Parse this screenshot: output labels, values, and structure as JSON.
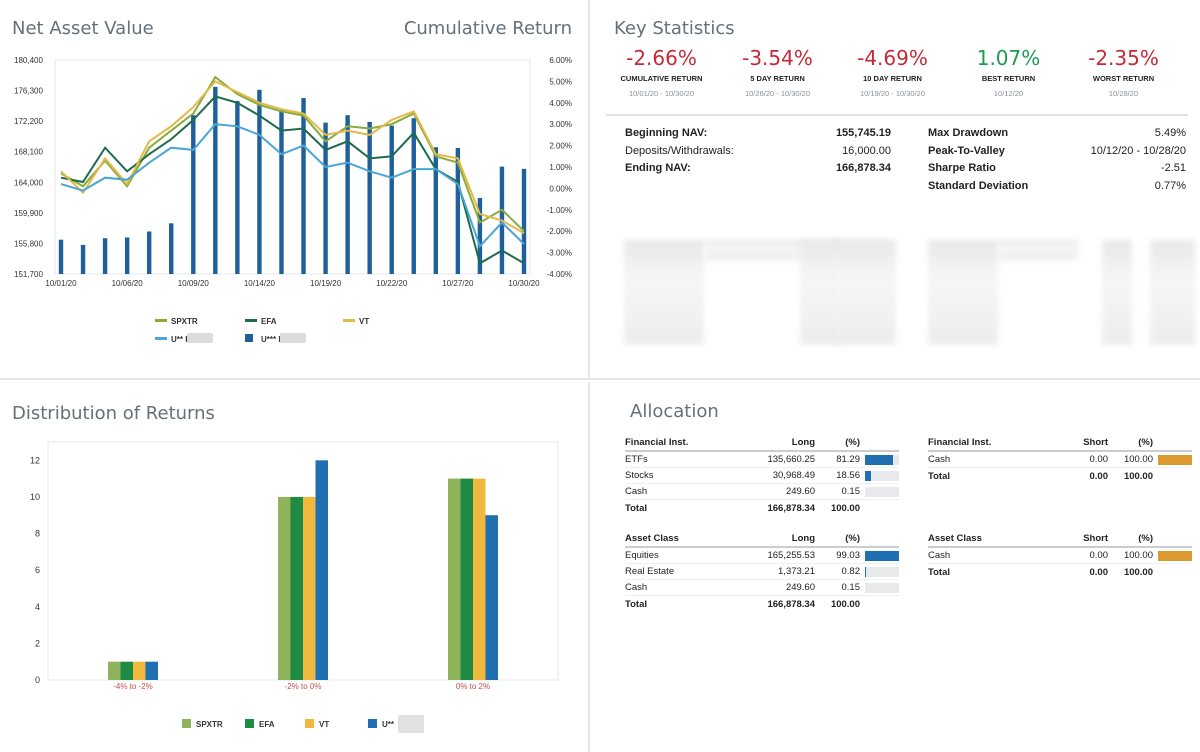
{
  "nav_panel": {
    "title": "Net Asset Value",
    "right_title": "Cumulative Return",
    "legend": [
      {
        "name": "SPXTR",
        "color": "#8aab3b"
      },
      {
        "name": "EFA",
        "color": "#1e6b4c"
      },
      {
        "name": "VT",
        "color": "#e3b94a"
      },
      {
        "name": "U**  Return",
        "color": "#4aa6d6"
      },
      {
        "name": "U***  NAV",
        "color": "#1f5f9c"
      }
    ]
  },
  "stats_panel": {
    "title": "Key Statistics",
    "kpis": [
      {
        "value": "-2.66%",
        "label": "CUMULATIVE RETURN",
        "dates": "10/01/20 - 10/30/20",
        "tone": "neg"
      },
      {
        "value": "-3.54%",
        "label": "5 DAY RETURN",
        "dates": "10/26/20 - 10/30/20",
        "tone": "neg"
      },
      {
        "value": "-4.69%",
        "label": "10 DAY RETURN",
        "dates": "10/19/20 - 10/30/20",
        "tone": "neg"
      },
      {
        "value": "1.07%",
        "label": "BEST RETURN",
        "dates": "10/12/20",
        "tone": "pos"
      },
      {
        "value": "-2.35%",
        "label": "WORST RETURN",
        "dates": "10/28/20",
        "tone": "neg"
      }
    ],
    "left_stats": [
      {
        "label": "Beginning NAV:",
        "value": "155,745.19"
      },
      {
        "label": "Deposits/Withdrawals:",
        "value": "16,000.00"
      },
      {
        "label": "Ending NAV:",
        "value": "166,878.34"
      }
    ],
    "right_stats": [
      {
        "label": "Max Drawdown",
        "value": "5.49%"
      },
      {
        "label": "Peak-To-Valley",
        "value": "10/12/20 - 10/28/20"
      },
      {
        "label": "Sharpe Ratio",
        "value": "-2.51"
      },
      {
        "label": "Standard Deviation",
        "value": "0.77%"
      }
    ]
  },
  "dist_panel": {
    "title": "Distribution of Returns",
    "legend": [
      {
        "name": "SPXTR",
        "color": "#8fb35a"
      },
      {
        "name": "EFA",
        "color": "#1f8a43"
      },
      {
        "name": "VT",
        "color": "#f0b83c"
      },
      {
        "name": "U**",
        "color": "#1f6fb2"
      }
    ]
  },
  "alloc_panel": {
    "title": "Allocation",
    "fin_long": {
      "headers": [
        "Financial Inst.",
        "Long",
        "(%)"
      ],
      "rows": [
        {
          "name": "ETFs",
          "value": "135,660.25",
          "pct": "81.29",
          "frac": 0.8129
        },
        {
          "name": "Stocks",
          "value": "30,968.49",
          "pct": "18.56",
          "frac": 0.1856
        },
        {
          "name": "Cash",
          "value": "249.60",
          "pct": "0.15",
          "frac": 0.0015
        }
      ],
      "total": {
        "name": "Total",
        "value": "166,878.34",
        "pct": "100.00"
      }
    },
    "fin_short": {
      "headers": [
        "Financial Inst.",
        "Short",
        "(%)"
      ],
      "rows": [
        {
          "name": "Cash",
          "value": "0.00",
          "pct": "100.00",
          "frac": 1.0
        }
      ],
      "total": {
        "name": "Total",
        "value": "0.00",
        "pct": "100.00"
      }
    },
    "asset_long": {
      "headers": [
        "Asset Class",
        "Long",
        "(%)"
      ],
      "rows": [
        {
          "name": "Equities",
          "value": "165,255.53",
          "pct": "99.03",
          "frac": 0.9903
        },
        {
          "name": "Real Estate",
          "value": "1,373.21",
          "pct": "0.82",
          "frac": 0.0082
        },
        {
          "name": "Cash",
          "value": "249.60",
          "pct": "0.15",
          "frac": 0.0015
        }
      ],
      "total": {
        "name": "Total",
        "value": "166,878.34",
        "pct": "100.00"
      }
    },
    "asset_short": {
      "headers": [
        "Asset Class",
        "Short",
        "(%)"
      ],
      "rows": [
        {
          "name": "Cash",
          "value": "0.00",
          "pct": "100.00",
          "frac": 1.0
        }
      ],
      "total": {
        "name": "Total",
        "value": "0.00",
        "pct": "100.00"
      }
    }
  },
  "chart_data": [
    {
      "type": "bar+line",
      "title": "Net Asset Value",
      "y_left_ticks": [
        "180,400",
        "176,300",
        "172,200",
        "168,100",
        "164,000",
        "159,900",
        "155,800",
        "151,700"
      ],
      "y_left_range": [
        151700,
        180400
      ],
      "y_right_ticks": [
        "6.00%",
        "5.00%",
        "4.00%",
        "3.00%",
        "2.00%",
        "1.00%",
        "0.00%",
        "-1.00%",
        "-2.00%",
        "-3.00%",
        "-4.00%"
      ],
      "y_right_range": [
        -4,
        6
      ],
      "x_tick_labels": [
        "10/01/20",
        "10/06/20",
        "10/09/20",
        "10/14/20",
        "10/19/20",
        "10/22/20",
        "10/27/20",
        "10/30/20"
      ],
      "x_tick_index": [
        0,
        3,
        6,
        9,
        12,
        15,
        18,
        21
      ],
      "nav_values": [
        156300,
        155600,
        156500,
        156600,
        157400,
        158500,
        173000,
        176800,
        174900,
        176400,
        173700,
        175300,
        172000,
        173000,
        172100,
        171600,
        172600,
        168700,
        168600,
        161900,
        166100,
        165800
      ],
      "series": [
        {
          "name": "SPXTR",
          "values": [
            0.7,
            0.1,
            1.3,
            0.1,
            1.9,
            2.7,
            3.5,
            5.2,
            4.4,
            3.9,
            3.6,
            3.4,
            2.2,
            2.9,
            2.8,
            3.0,
            3.5,
            1.5,
            1.2,
            -1.6,
            -1.0,
            -2.0
          ]
        },
        {
          "name": "EFA",
          "values": [
            0.5,
            0.3,
            1.9,
            0.8,
            1.6,
            2.3,
            3.2,
            4.3,
            4.0,
            3.4,
            2.7,
            2.8,
            1.8,
            2.2,
            1.4,
            1.5,
            2.6,
            0.9,
            0.3,
            -3.5,
            -2.9,
            -3.5
          ]
        },
        {
          "name": "VT",
          "values": [
            0.8,
            -0.2,
            1.4,
            0.2,
            2.2,
            2.9,
            3.8,
            5.0,
            4.5,
            4.0,
            3.7,
            3.5,
            2.5,
            2.7,
            2.5,
            3.2,
            3.6,
            1.6,
            1.4,
            -1.2,
            -1.5,
            -2.1
          ]
        },
        {
          "name": "U**  Return",
          "values": [
            0.2,
            -0.1,
            0.5,
            0.4,
            1.2,
            1.9,
            1.8,
            3.0,
            2.9,
            2.5,
            1.6,
            2.0,
            1.0,
            1.2,
            0.8,
            0.5,
            0.9,
            0.9,
            0.2,
            -2.7,
            -1.6,
            -2.6
          ]
        }
      ]
    },
    {
      "type": "bar",
      "title": "Distribution of Returns",
      "categories": [
        "-4% to -2%",
        "-2% to 0%",
        "0% to 2%"
      ],
      "y_ticks": [
        0,
        2,
        4,
        6,
        8,
        10,
        12
      ],
      "ylim": [
        0,
        13
      ],
      "series": [
        {
          "name": "SPXTR",
          "values": [
            1,
            10,
            11
          ]
        },
        {
          "name": "EFA",
          "values": [
            1,
            10,
            11
          ]
        },
        {
          "name": "VT",
          "values": [
            1,
            10,
            11
          ]
        },
        {
          "name": "U**",
          "values": [
            1,
            12,
            9
          ]
        }
      ]
    }
  ]
}
